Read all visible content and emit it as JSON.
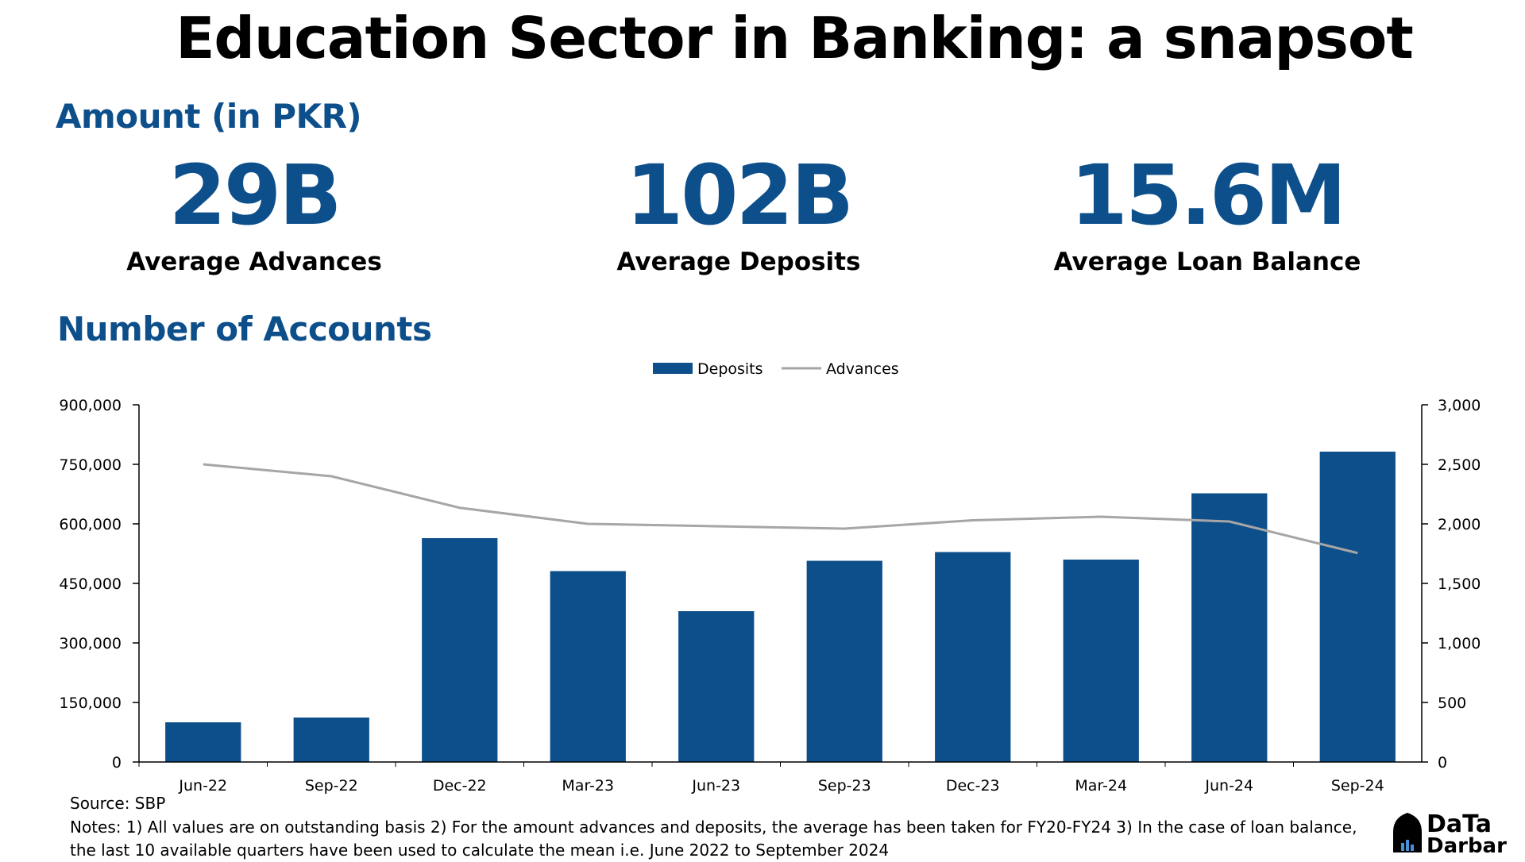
{
  "title": "Education Sector in Banking: a snapsot",
  "amount_section": {
    "title": "Amount (in PKR)",
    "kpis": [
      {
        "value": "29B",
        "label": "Average Advances"
      },
      {
        "value": "102B",
        "label": "Average Deposits"
      },
      {
        "value": "15.6M",
        "label": "Average Loan Balance"
      }
    ]
  },
  "accounts_section": {
    "title": "Number of Accounts"
  },
  "chart_data": {
    "type": "bar",
    "categories": [
      "Jun-22",
      "Sep-22",
      "Dec-22",
      "Mar-23",
      "Jun-23",
      "Sep-23",
      "Dec-23",
      "Mar-24",
      "Jun-24",
      "Sep-24"
    ],
    "series": [
      {
        "name": "Deposits",
        "type": "bar",
        "axis": "left",
        "color": "#0d4f8b",
        "values": [
          100000,
          112000,
          564000,
          481000,
          380000,
          507000,
          529000,
          510000,
          677000,
          782000
        ]
      },
      {
        "name": "Advances",
        "type": "line",
        "axis": "right",
        "color": "#a6a6a6",
        "values": [
          2500,
          2400,
          2135,
          2000,
          1980,
          1960,
          2030,
          2060,
          2020,
          1755
        ]
      }
    ],
    "left_axis": {
      "ylim": [
        0,
        900000
      ],
      "ticks": [
        0,
        150000,
        300000,
        450000,
        600000,
        750000,
        900000
      ],
      "tick_labels": [
        "0",
        "150,000",
        "300,000",
        "450,000",
        "600,000",
        "750,000",
        "900,000"
      ]
    },
    "right_axis": {
      "ylim": [
        0,
        3000
      ],
      "ticks": [
        0,
        500,
        1000,
        1500,
        2000,
        2500,
        3000
      ],
      "tick_labels": [
        "0",
        "500",
        "1,000",
        "1,500",
        "2,000",
        "2,500",
        "3,000"
      ]
    },
    "legend": "top-center",
    "grid": false
  },
  "footer": {
    "source": "Source: SBP",
    "notes": "Notes: 1) All values are on outstanding basis 2) For the amount advances and deposits, the average has been taken for FY20-FY24 3) In the case of loan balance, the last 10 available quarters have been used to calculate the mean i.e. June 2022 to September 2024"
  },
  "logo": {
    "line1": "DaTa",
    "line2": "Darbar"
  }
}
